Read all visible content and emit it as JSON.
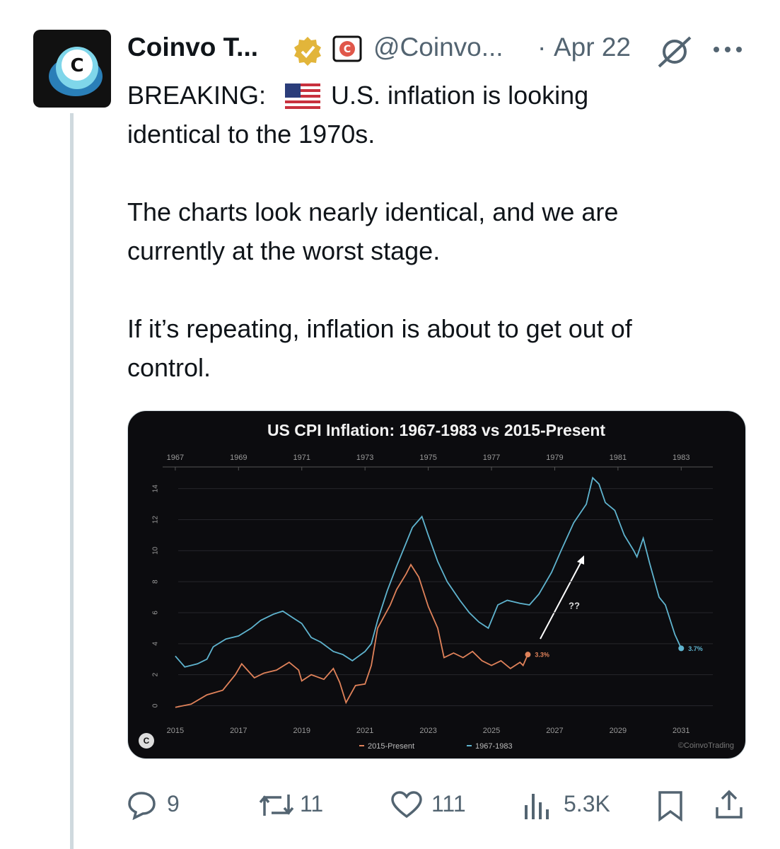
{
  "tweet": {
    "author": "Coinvo T...",
    "handle": "@Coinvo...",
    "date": "Apr 22",
    "lines": [
      [
        "BREAKING:",
        "U.S. inflation is looking",
        "identical to the 1970s."
      ],
      [
        "The charts look nearly identical, and we are",
        "currently at the worst stage."
      ],
      [
        "If it’s repeating, inflation is about to get out of",
        "control."
      ]
    ],
    "stats": {
      "replies": 9,
      "reposts": 11,
      "likes": 111,
      "views": "5.3K"
    }
  },
  "chart_data": {
    "type": "line",
    "title": "US CPI Inflation: 1967-1983 vs 2015-Present",
    "xlim": [
      2014.6,
      2032
    ],
    "xticks": [
      2015,
      2017,
      2019,
      2021,
      2023,
      2025,
      2027,
      2029,
      2031
    ],
    "x2lim": [
      1966.6,
      1984
    ],
    "x2ticks": [
      1967,
      1969,
      1971,
      1973,
      1975,
      1977,
      1979,
      1981,
      1983
    ],
    "ylim": [
      -0.8,
      15.4
    ],
    "yticks": [
      0,
      2,
      4,
      6,
      8,
      10,
      12,
      14
    ],
    "grid": true,
    "series": [
      {
        "name": "2015-Present",
        "color": "#e0825a",
        "x": [
          2015.0,
          2015.5,
          2016.0,
          2016.5,
          2016.9,
          2017.1,
          2017.5,
          2017.8,
          2018.2,
          2018.6,
          2018.9,
          2019.0,
          2019.3,
          2019.7,
          2020.0,
          2020.2,
          2020.4,
          2020.7,
          2021.0,
          2021.2,
          2021.4,
          2021.8,
          2022.0,
          2022.3,
          2022.45,
          2022.7,
          2023.0,
          2023.3,
          2023.5,
          2023.8,
          2024.1,
          2024.4,
          2024.7,
          2025.0,
          2025.3,
          2025.6,
          2025.9,
          2026.0,
          2026.15
        ],
        "values": [
          -0.1,
          0.1,
          0.7,
          1.0,
          2.0,
          2.7,
          1.8,
          2.1,
          2.3,
          2.8,
          2.3,
          1.6,
          2.0,
          1.7,
          2.4,
          1.5,
          0.2,
          1.3,
          1.4,
          2.6,
          5.0,
          6.5,
          7.5,
          8.5,
          9.1,
          8.3,
          6.4,
          5.0,
          3.1,
          3.4,
          3.1,
          3.5,
          2.9,
          2.6,
          2.9,
          2.4,
          2.8,
          2.6,
          3.3
        ],
        "value_labels": [
          null,
          null,
          null,
          null,
          null,
          null,
          null,
          null,
          null,
          null,
          null,
          null,
          null,
          null,
          null,
          null,
          null,
          null,
          null,
          null,
          null,
          null,
          null,
          null,
          null,
          null,
          null,
          null,
          null,
          null,
          null,
          null,
          null,
          null,
          null,
          null,
          null,
          null,
          "3.3%"
        ]
      },
      {
        "name": "1967-1983",
        "color": "#5fb4cf",
        "axis": "x2",
        "x": [
          1967.0,
          1967.3,
          1967.7,
          1968.0,
          1968.2,
          1968.6,
          1969.0,
          1969.4,
          1969.7,
          1970.1,
          1970.4,
          1970.7,
          1971.0,
          1971.3,
          1971.6,
          1972.0,
          1972.3,
          1972.6,
          1973.0,
          1973.2,
          1973.4,
          1973.7,
          1974.0,
          1974.3,
          1974.5,
          1974.8,
          1975.0,
          1975.3,
          1975.6,
          1976.0,
          1976.3,
          1976.6,
          1976.9,
          1977.2,
          1977.5,
          1977.9,
          1978.2,
          1978.5,
          1978.9,
          1979.2,
          1979.6,
          1980.0,
          1980.2,
          1980.4,
          1980.6,
          1980.9,
          1981.2,
          1981.5,
          1981.6,
          1981.8,
          1982.0,
          1982.3,
          1982.5,
          1982.8,
          1983.0
        ],
        "values": [
          3.2,
          2.5,
          2.7,
          3.0,
          3.8,
          4.3,
          4.5,
          5.0,
          5.5,
          5.9,
          6.1,
          5.7,
          5.3,
          4.4,
          4.1,
          3.5,
          3.3,
          2.9,
          3.5,
          4.0,
          5.5,
          7.4,
          9.0,
          10.5,
          11.5,
          12.2,
          11.0,
          9.3,
          8.0,
          6.8,
          6.0,
          5.4,
          5.0,
          6.5,
          6.8,
          6.6,
          6.5,
          7.2,
          8.6,
          10.0,
          11.8,
          13.0,
          14.7,
          14.3,
          13.1,
          12.6,
          11.0,
          10.0,
          9.6,
          10.8,
          9.2,
          7.0,
          6.5,
          4.6,
          3.7
        ],
        "value_labels": [
          null,
          null,
          null,
          null,
          null,
          null,
          null,
          null,
          null,
          null,
          null,
          null,
          null,
          null,
          null,
          null,
          null,
          null,
          null,
          null,
          null,
          null,
          null,
          null,
          null,
          null,
          null,
          null,
          null,
          null,
          null,
          null,
          null,
          null,
          null,
          null,
          null,
          null,
          null,
          null,
          null,
          null,
          null,
          null,
          null,
          null,
          null,
          null,
          null,
          null,
          null,
          null,
          null,
          null,
          "3.7%"
        ]
      }
    ],
    "annotation": "??",
    "watermark": "©CoinvoTrading"
  }
}
